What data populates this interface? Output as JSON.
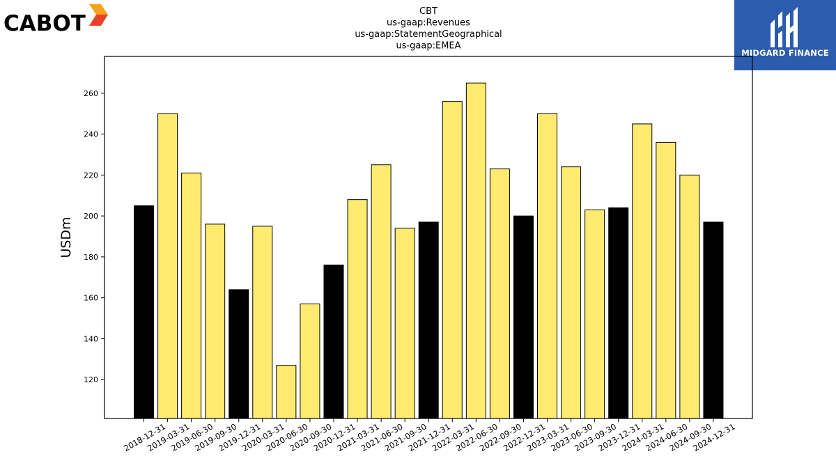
{
  "logos": {
    "left_text": "CABOT",
    "right_text": "MIDGARD FINANCE"
  },
  "colors": {
    "annual_bar": "#000000",
    "quarter_bar": "#ffeb70",
    "logo_right_bg": "#2b5cae",
    "logo_left_accent": "#e8412c"
  },
  "chart_data": {
    "type": "bar",
    "title_lines": [
      "CBT",
      "us-gaap:Revenues",
      "us-gaap:StatementGeographical",
      "us-gaap:EMEA"
    ],
    "xlabel": "",
    "ylabel": "USDm",
    "ylim": [
      101,
      278
    ],
    "yticks": [
      120,
      140,
      160,
      180,
      200,
      220,
      240,
      260
    ],
    "grid": false,
    "categories": [
      "2018-12-31",
      "2019-03-31",
      "2019-06-30",
      "2019-09-30",
      "2019-12-31",
      "2020-03-31",
      "2020-06-30",
      "2020-09-30",
      "2020-12-31",
      "2021-03-31",
      "2021-06-30",
      "2021-09-30",
      "2021-12-31",
      "2022-03-31",
      "2022-06-30",
      "2022-09-30",
      "2022-12-31",
      "2023-03-31",
      "2023-06-30",
      "2023-09-30",
      "2023-12-31",
      "2024-03-31",
      "2024-06-30",
      "2024-09-30",
      "2024-12-31"
    ],
    "values": [
      205,
      250,
      221,
      196,
      164,
      195,
      127,
      157,
      176,
      208,
      225,
      194,
      197,
      256,
      265,
      223,
      200,
      250,
      224,
      203,
      204,
      245,
      236,
      220,
      197
    ],
    "highlight": [
      "annual",
      "quarter",
      "quarter",
      "quarter",
      "annual",
      "quarter",
      "quarter",
      "quarter",
      "annual",
      "quarter",
      "quarter",
      "quarter",
      "annual",
      "quarter",
      "quarter",
      "quarter",
      "annual",
      "quarter",
      "quarter",
      "quarter",
      "annual",
      "quarter",
      "quarter",
      "quarter",
      "annual"
    ]
  }
}
